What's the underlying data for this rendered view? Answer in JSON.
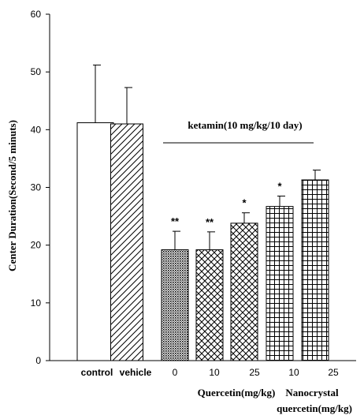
{
  "chart_data": {
    "type": "bar",
    "ylabel": "Center Duration(Second/5 minuts)",
    "ylim": [
      0,
      60
    ],
    "yticks": [
      0,
      10,
      20,
      30,
      40,
      50,
      60
    ],
    "bars": [
      {
        "label": "control",
        "value": 41.2,
        "error": 10.0,
        "sig": "",
        "pattern": "open",
        "label_style": "bold"
      },
      {
        "label": "vehicle",
        "value": 41.0,
        "error": 6.3,
        "sig": "",
        "pattern": "diag",
        "label_style": "bold"
      },
      {
        "label": "0",
        "value": 19.2,
        "error": 3.2,
        "sig": "**",
        "pattern": "dots",
        "label_style": "normal"
      },
      {
        "label": "10",
        "value": 19.2,
        "error": 3.1,
        "sig": "**",
        "pattern": "cross",
        "label_style": "normal"
      },
      {
        "label": "25",
        "value": 23.8,
        "error": 1.8,
        "sig": "*",
        "pattern": "cross",
        "label_style": "normal"
      },
      {
        "label": "10",
        "value": 26.7,
        "error": 1.8,
        "sig": "*",
        "pattern": "grid",
        "label_style": "normal"
      },
      {
        "label": "25",
        "value": 31.3,
        "error": 1.7,
        "sig": "",
        "pattern": "grid",
        "label_style": "normal"
      }
    ],
    "annotations": {
      "ketamin": "ketamin(10 mg/kg/10 day)",
      "quercetin": "Quercetin(mg/kg)",
      "nanocrystal_line1": "Nanocrystal",
      "nanocrystal_line2": "quercetin(mg/kg)"
    },
    "grid": false
  }
}
